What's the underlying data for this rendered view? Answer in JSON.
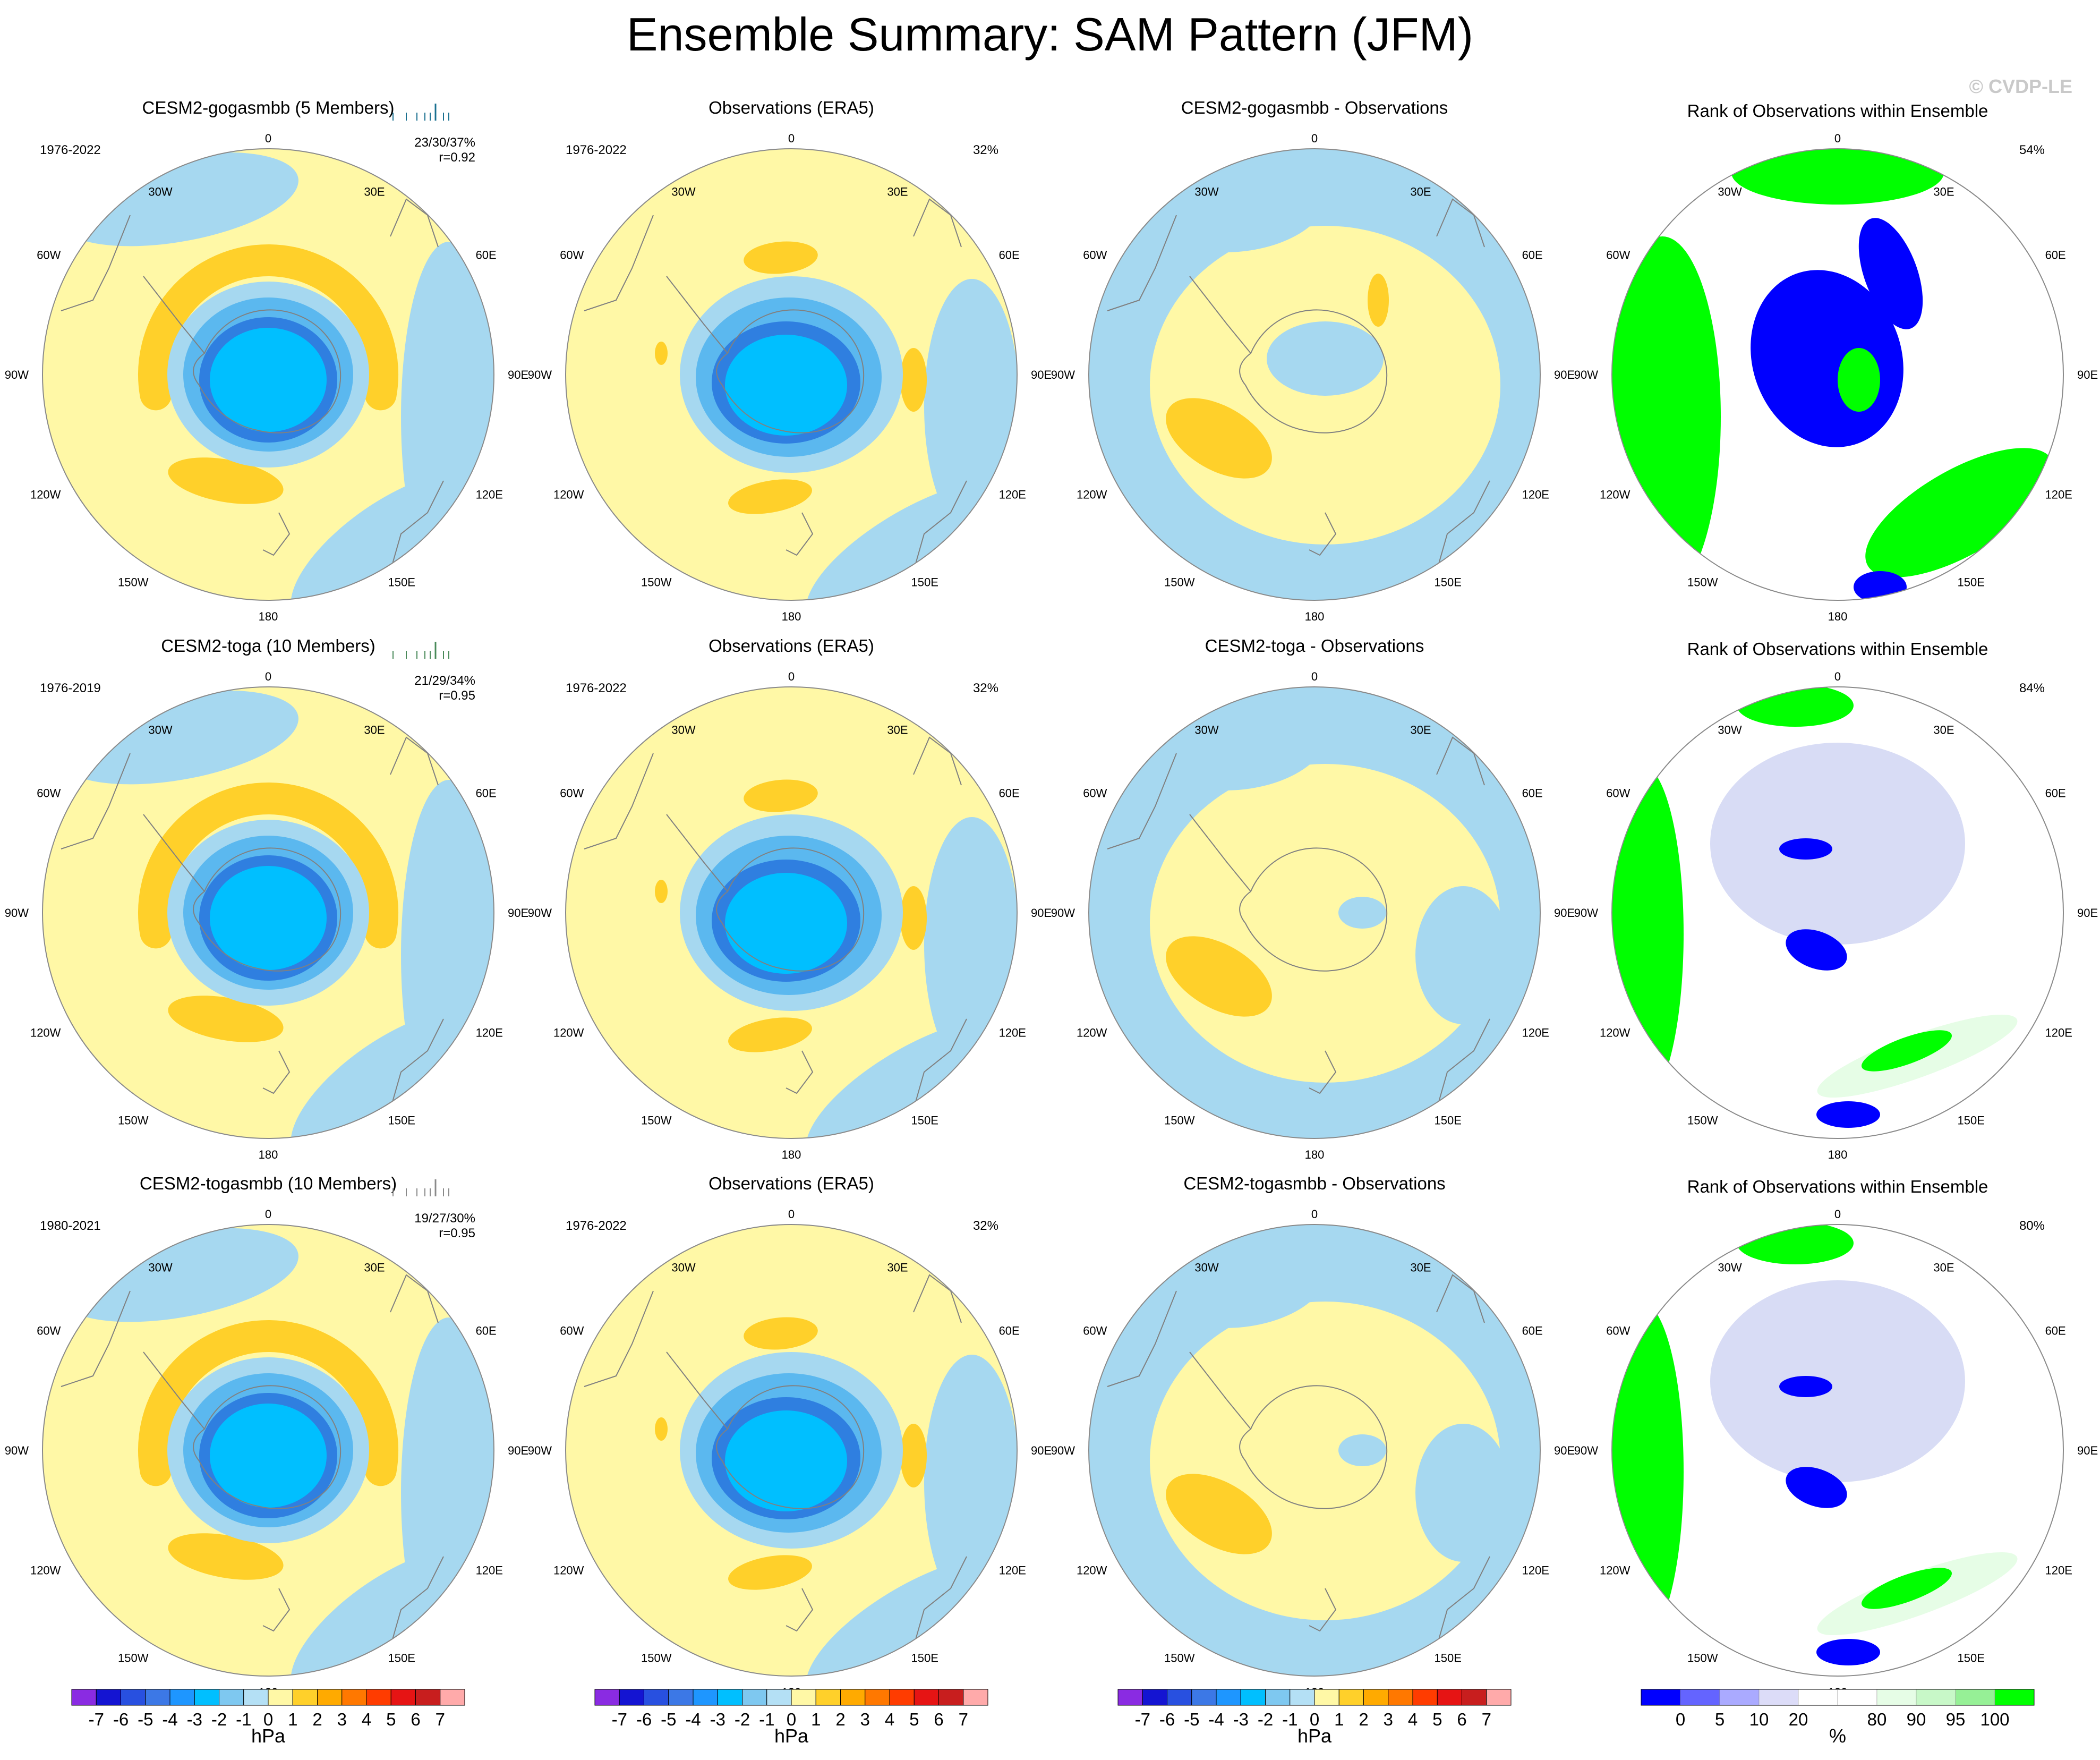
{
  "title": "Ensemble Summary: SAM Pattern (JFM)",
  "watermark": "© CVDP-LE",
  "lon_labels": [
    "0",
    "30E",
    "60E",
    "90E",
    "120E",
    "150E",
    "180",
    "150W",
    "120W",
    "90W",
    "60W",
    "30W"
  ],
  "colors": {
    "blue_dark": "#1e90ff",
    "blue_mid": "#5bb8ef",
    "blue_light": "#a6d8f0",
    "blue_core": "#00bfff",
    "blue_deep": "#2f7fe0",
    "cream": "#fff8a6",
    "orange": "#ffd02a",
    "green": "#00ff00",
    "rank_blue": "#0000ff",
    "lavender": "#d8dcf5",
    "pale_green": "#e6fde6",
    "coast": "#808080",
    "member_color_1": "#1a7090",
    "member_color_2": "#4a8a5a",
    "member_color_3": "#8a8a8a"
  },
  "rows": [
    {
      "model_title": "CESM2-gogasmbb (5 Members)",
      "model_title_color": "#1a7090",
      "model_years": "1976-2022",
      "stats": "23/30/37%",
      "corr": "r=0.92",
      "obs_title": "Observations (ERA5)",
      "obs_years": "1976-2022",
      "obs_pct": "32%",
      "diff_title": "CESM2-gogasmbb - Observations",
      "rank_title": "Rank of Observations within Ensemble",
      "rank_pct": "54%"
    },
    {
      "model_title": "CESM2-toga (10 Members)",
      "model_title_color": "#4a8a5a",
      "model_years": "1976-2019",
      "stats": "21/29/34%",
      "corr": "r=0.95",
      "obs_title": "Observations (ERA5)",
      "obs_years": "1976-2022",
      "obs_pct": "32%",
      "diff_title": "CESM2-toga - Observations",
      "rank_title": "Rank of Observations within Ensemble",
      "rank_pct": "84%"
    },
    {
      "model_title": "CESM2-togasmbb (10 Members)",
      "model_title_color": "#8a8a8a",
      "model_years": "1980-2021",
      "stats": "19/27/30%",
      "corr": "r=0.95",
      "obs_title": "Observations (ERA5)",
      "obs_years": "1976-2022",
      "obs_pct": "32%",
      "diff_title": "CESM2-togasmbb - Observations",
      "rank_title": "Rank of Observations within Ensemble",
      "rank_pct": "80%"
    }
  ],
  "colorbar_hpa": {
    "unit": "hPa",
    "labels": [
      "-7",
      "-6",
      "-5",
      "-4",
      "-3",
      "-2",
      "-1",
      "0",
      "1",
      "2",
      "3",
      "4",
      "5",
      "6",
      "7"
    ],
    "colors": [
      "#8a2be2",
      "#1414d2",
      "#2850e0",
      "#3c78e6",
      "#1e96ff",
      "#00bfff",
      "#7ec8f0",
      "#b4e0f5",
      "#fff8a6",
      "#ffd02a",
      "#ffaa00",
      "#ff7800",
      "#ff3c00",
      "#e61414",
      "#c81e1e",
      "#ffaaaa"
    ]
  },
  "colorbar_rank": {
    "unit": "%",
    "labels": [
      "0",
      "5",
      "10",
      "20",
      "80",
      "90",
      "95",
      "100"
    ],
    "colors": [
      "#0000ff",
      "#6464ff",
      "#aaaaff",
      "#dcdcf8",
      "#ffffff",
      "#ffffff",
      "#e6fde6",
      "#c8f8c8",
      "#96f096",
      "#00ff00"
    ]
  }
}
